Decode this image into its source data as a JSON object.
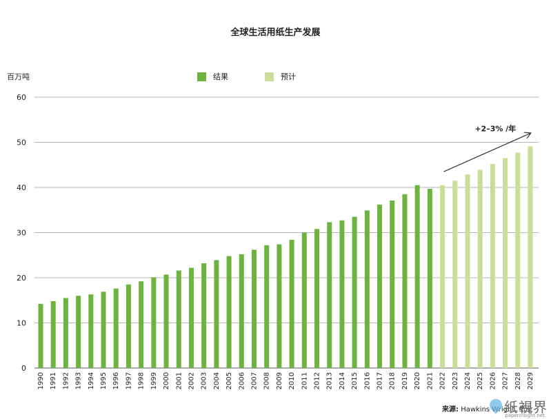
{
  "chart_data": {
    "type": "bar",
    "title": "全球生活用纸生产发展",
    "ylabel": "百万吨",
    "ylim": [
      0,
      60
    ],
    "yticks": [
      0,
      10,
      20,
      30,
      40,
      50,
      60
    ],
    "grid": true,
    "legend_position": "top",
    "categories": [
      "1990",
      "1991",
      "1992",
      "1993",
      "1994",
      "1995",
      "1996",
      "1997",
      "1998",
      "1999",
      "2000",
      "2001",
      "2002",
      "2003",
      "2004",
      "2005",
      "2006",
      "2007",
      "2008",
      "2009",
      "2010",
      "2011",
      "2012",
      "2013",
      "2014",
      "2015",
      "2016",
      "2017",
      "2018",
      "2019",
      "2020",
      "2021",
      "2022",
      "2023",
      "2024",
      "2025",
      "2026",
      "2027",
      "2028",
      "2029"
    ],
    "series": [
      {
        "name": "结果",
        "color": "#6db33f",
        "values": [
          14.2,
          14.8,
          15.5,
          16.0,
          16.3,
          16.9,
          17.6,
          18.5,
          19.2,
          20.1,
          20.7,
          21.6,
          22.2,
          23.2,
          23.9,
          24.8,
          25.2,
          26.2,
          27.2,
          27.4,
          28.4,
          30.0,
          30.8,
          32.3,
          32.7,
          33.5,
          34.9,
          36.2,
          37.1,
          38.5,
          40.5,
          39.7,
          null,
          null,
          null,
          null,
          null,
          null,
          null,
          null
        ]
      },
      {
        "name": "预计",
        "color": "#c8de99",
        "values": [
          null,
          null,
          null,
          null,
          null,
          null,
          null,
          null,
          null,
          null,
          null,
          null,
          null,
          null,
          null,
          null,
          null,
          null,
          null,
          null,
          null,
          null,
          null,
          null,
          null,
          null,
          null,
          null,
          null,
          null,
          null,
          null,
          40.5,
          41.5,
          42.9,
          43.9,
          45.2,
          46.5,
          47.7,
          49.1
        ]
      }
    ],
    "annotation": {
      "text": "+2–3% /年",
      "arrow_from_category": "2022",
      "arrow_to_category": "2029",
      "arrow_from_value": 43.5,
      "arrow_to_value": 52.0
    }
  },
  "source": {
    "label": "来源:",
    "text": "Hawkins Wright, 纸业"
  },
  "watermark": {
    "text": "纸視界",
    "url": "paperinsight.net"
  }
}
